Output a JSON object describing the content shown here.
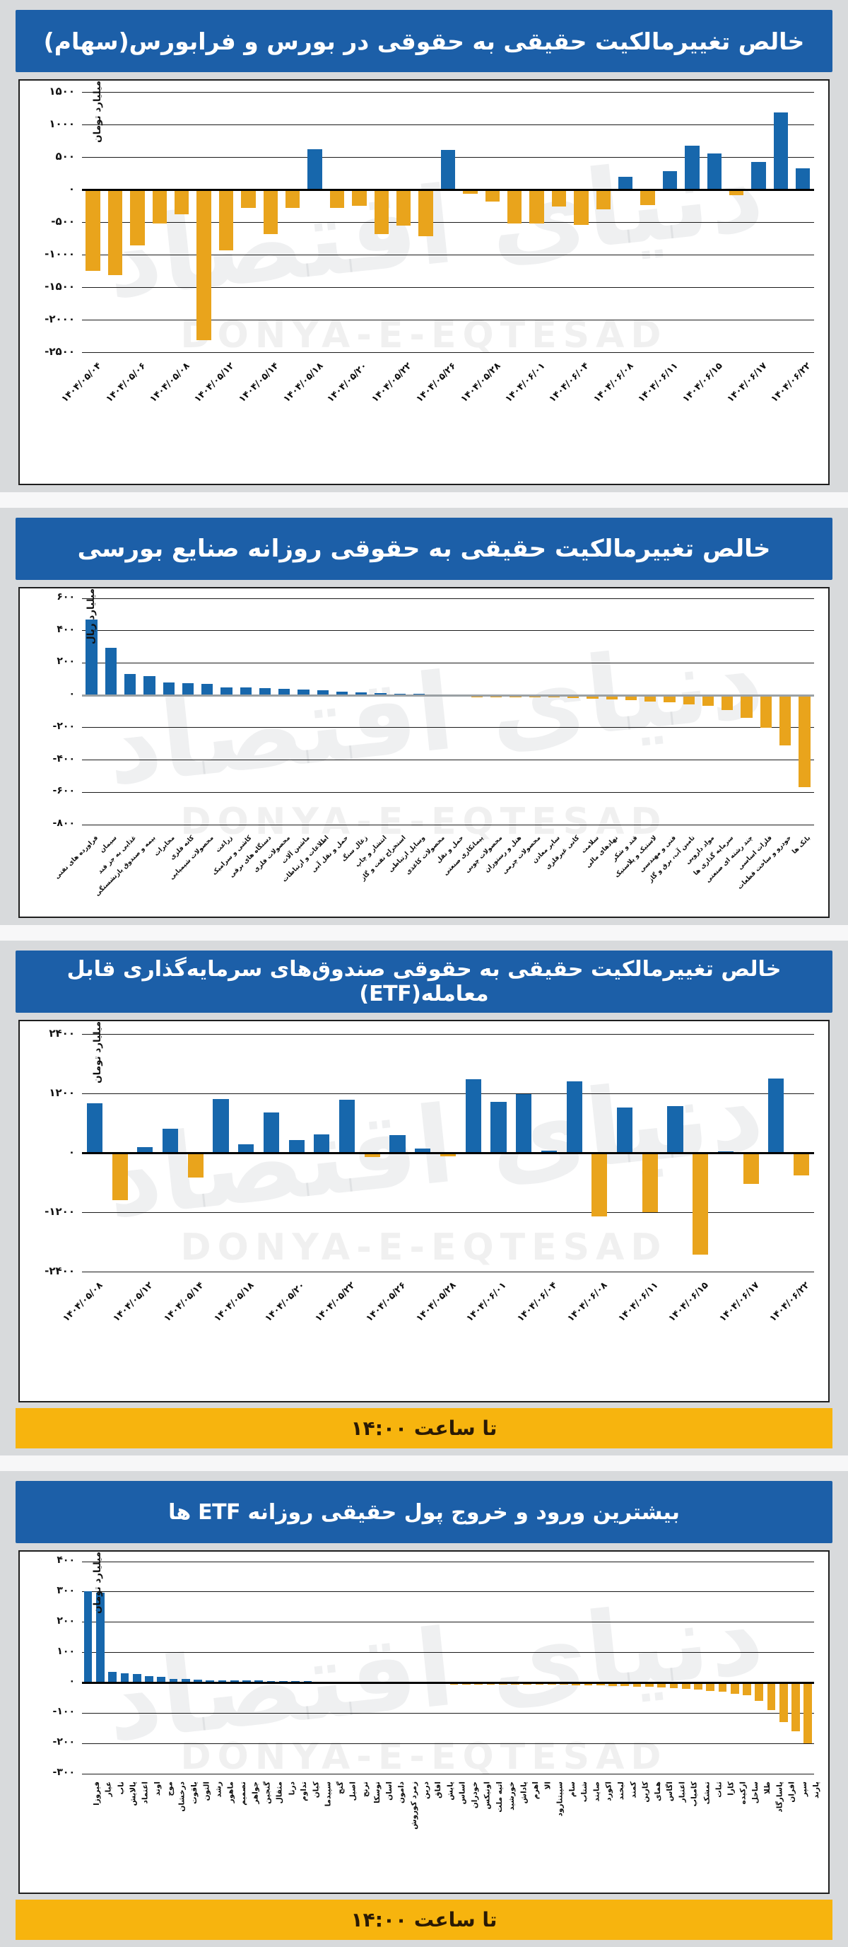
{
  "watermark": {
    "en": "DONYA-E-EQTESAD",
    "fa": "دنیای اقتصاد"
  },
  "colors": {
    "positive_bar": "#1767AC",
    "negative_bar": "#E9A41C",
    "header_bg": "#1C5FA8",
    "header_text": "#FFFFFF",
    "footer_bg": "#F7B40E",
    "footer_text": "#2A1A05",
    "panel_bg": "#D8DADC",
    "card_bg": "#FFFFFF"
  },
  "footer_note": "تا ساعت ۱۴:۰۰",
  "chart_data": [
    {
      "type": "bar",
      "title": "خالص تغییرمالکیت حقیقی به حقوقی در بورس و فرابورس(سهام)",
      "ylabel": "میلیارد تومان",
      "ylim": [
        -2500,
        1500
      ],
      "grid": true,
      "legend_position": "none",
      "ticks": [
        {
          "value": 1500,
          "label": "۱۵۰۰"
        },
        {
          "value": 1000,
          "label": "۱۰۰۰"
        },
        {
          "value": 500,
          "label": "۵۰۰"
        },
        {
          "value": 0,
          "label": "۰"
        },
        {
          "value": -500,
          "label": "-۵۰۰"
        },
        {
          "value": -1000,
          "label": "-۱۰۰۰"
        },
        {
          "value": -1500,
          "label": "-۱۵۰۰"
        },
        {
          "value": -2000,
          "label": "-۲۰۰۰"
        },
        {
          "value": -2500,
          "label": "-۲۵۰۰"
        }
      ],
      "categories": [
        "۱۴۰۴/۰۵/۰۴",
        "۱۴۰۴/۰۵/۰۶",
        "۱۴۰۴/۰۵/۰۸",
        "۱۴۰۴/۰۵/۱۲",
        "۱۴۰۴/۰۵/۱۴",
        "۱۴۰۴/۰۵/۱۸",
        "۱۴۰۴/۰۵/۲۰",
        "۱۴۰۴/۰۵/۲۲",
        "۱۴۰۴/۰۵/۲۶",
        "۱۴۰۴/۰۵/۲۸",
        "۱۴۰۴/۰۶/۰۱",
        "۱۴۰۴/۰۶/۰۴",
        "۱۴۰۴/۰۶/۰۸",
        "۱۴۰۴/۰۶/۱۱",
        "۱۴۰۴/۰۶/۱۵",
        "۱۴۰۴/۰۶/۱۷",
        "۱۴۰۴/۰۶/۲۲"
      ],
      "label_every": 2,
      "label_style": "diag-lg",
      "bar_frac": 0.65,
      "values": [
        -1250,
        -1320,
        -860,
        -520,
        -380,
        -2320,
        -930,
        -280,
        -680,
        -280,
        620,
        -280,
        -250,
        -680,
        -550,
        -720,
        610,
        -70,
        -180,
        -520,
        -520,
        -260,
        -540,
        -300,
        200,
        -240,
        280,
        670,
        550,
        -90,
        420,
        1180,
        330
      ]
    },
    {
      "type": "bar",
      "title": "خالص تغییرمالکیت حقیقی به حقوقی روزانه صنایع بورسی",
      "ylabel": "میلیارد ریال",
      "ylim": [
        -800,
        600
      ],
      "grid": true,
      "legend_position": "none",
      "ticks": [
        {
          "value": 600,
          "label": "۶۰۰"
        },
        {
          "value": 400,
          "label": "۴۰۰"
        },
        {
          "value": 200,
          "label": "۲۰۰"
        },
        {
          "value": 0,
          "label": "۰"
        },
        {
          "value": -200,
          "label": "-۲۰۰"
        },
        {
          "value": -400,
          "label": "-۴۰۰"
        },
        {
          "value": -600,
          "label": "-۶۰۰"
        },
        {
          "value": -800,
          "label": "-۸۰۰"
        }
      ],
      "categories": [
        "فراورده های نفتی",
        "سیمان",
        "غذایی به جز قند",
        "بیمه و صندوق بازنشستگی",
        "مخابرات",
        "کانه فلزی",
        "محصولات شیمیایی",
        "زراعت",
        "کاشی و سرامیک",
        "دستگاه های برقی",
        "محصولات فلزی",
        "ماشین آلات",
        "اطلاعات و ارتباطات",
        "حمل و نقل آبی",
        "زغال سنگ",
        "انتشار و چاپ",
        "استخراج نفت و گاز",
        "وسایل ارتباطی",
        "محصولات کاغذی",
        "حمل و نقل",
        "پیمانکاری صنعتی",
        "محصولات چوبی",
        "هتل و رستوران",
        "محصولات چرمی",
        "سایر معادن",
        "کانی غیرفلزی",
        "سلامت",
        "نهادهای مالی",
        "قند و شکر",
        "لاستیک و پلاستیک",
        "فنی و مهندسی",
        "تامین آب، برق و گاز",
        "مواد دارویی",
        "سرمایه گذاری ها",
        "چند رشته ای صنعتی",
        "فلزات اساسی",
        "خودرو و ساخت قطعات",
        "بانک ها"
      ],
      "label_every": 1,
      "label_style": "diag-sm",
      "bar_frac": 0.6,
      "values": [
        470,
        295,
        130,
        120,
        78,
        73,
        70,
        48,
        47,
        46,
        38,
        36,
        30,
        22,
        18,
        14,
        10,
        8,
        5,
        3,
        -3,
        -5,
        -8,
        -10,
        -13,
        -16,
        -20,
        -25,
        -30,
        -38,
        -45,
        -55,
        -65,
        -90,
        -140,
        -200,
        -310,
        -570
      ]
    },
    {
      "type": "bar",
      "title": "خالص تغییرمالکیت حقیقی به حقوقی صندوق‌های سرمایه‌گذاری قابل معامله(ETF)",
      "ylabel": "میلیارد تومان",
      "ylim": [
        -2400,
        2400
      ],
      "grid": true,
      "legend_position": "none",
      "has_footer": true,
      "ticks": [
        {
          "value": 2400,
          "label": "۲۴۰۰"
        },
        {
          "value": 1200,
          "label": "۱۲۰۰"
        },
        {
          "value": 0,
          "label": "۰"
        },
        {
          "value": -1200,
          "label": "-۱۲۰۰"
        },
        {
          "value": -2400,
          "label": "-۲۴۰۰"
        }
      ],
      "categories": [
        "۱۴۰۴/۰۵/۰۸",
        "۱۴۰۴/۰۵/۱۲",
        "۱۴۰۴/۰۵/۱۴",
        "۱۴۰۴/۰۵/۱۸",
        "۱۴۰۴/۰۵/۲۰",
        "۱۴۰۴/۰۵/۲۲",
        "۱۴۰۴/۰۵/۲۶",
        "۱۴۰۴/۰۵/۲۸",
        "۱۴۰۴/۰۶/۰۱",
        "۱۴۰۴/۰۶/۰۴",
        "۱۴۰۴/۰۶/۰۸",
        "۱۴۰۴/۰۶/۱۱",
        "۱۴۰۴/۰۶/۱۵",
        "۱۴۰۴/۰۶/۱۷",
        "۱۴۰۴/۰۶/۲۲"
      ],
      "label_every": 2,
      "label_style": "diag-lg",
      "bar_frac": 0.62,
      "values": [
        1000,
        -950,
        115,
        485,
        -500,
        1085,
        165,
        810,
        260,
        365,
        1075,
        -85,
        360,
        90,
        -75,
        1480,
        1035,
        1190,
        40,
        1450,
        -1280,
        915,
        -1200,
        950,
        -2050,
        25,
        -625,
        1500,
        -450
      ]
    },
    {
      "type": "bar",
      "title": "بیشترین ورود و خروج پول حقیقی روزانه ETF ها",
      "ylabel": "میلیارد تومان",
      "ylim": [
        -300,
        400
      ],
      "grid": true,
      "legend_position": "none",
      "has_footer": true,
      "ticks": [
        {
          "value": 400,
          "label": "۴۰۰"
        },
        {
          "value": 300,
          "label": "۳۰۰"
        },
        {
          "value": 200,
          "label": "۲۰۰"
        },
        {
          "value": 100,
          "label": "۱۰۰"
        },
        {
          "value": 0,
          "label": "۰"
        },
        {
          "value": -100,
          "label": "-۱۰۰"
        },
        {
          "value": -200,
          "label": "-۲۰۰"
        },
        {
          "value": -300,
          "label": "-۳۰۰"
        }
      ],
      "categories": [
        "فیروزا",
        "عیار",
        "ناب",
        "پالایش",
        "اعتماد",
        "اوند",
        "موج",
        "درخشان",
        "یاقوت",
        "التون",
        "رشد",
        "ماهور",
        "تصمیم",
        "جواهر",
        "گنجین",
        "مثقال",
        "درنا",
        "تداوم",
        "کیان",
        "سپیدما",
        "گنج",
        "اصیل",
        "ترنج",
        "توسکا",
        "اسان",
        "دامون",
        "زمرد کوروش",
        "درین",
        "افاق",
        "پایش",
        "اساس",
        "خودران",
        "اونیکس",
        "اتیه ملت",
        "خورشید",
        "پاداش",
        "اهرم",
        "الا",
        "سپیتنارود",
        "سام",
        "شتاب",
        "صایند",
        "اکورد",
        "لبخند",
        "کمند",
        "کارین",
        "همای",
        "اگاس",
        "اعتبار",
        "کامیاب",
        "تمشک",
        "ثبات",
        "کارا",
        "ارکیده",
        "ساحل",
        "طلا",
        "پاسارگاد",
        "افران",
        "سپر",
        "پارند"
      ],
      "label_every": 1,
      "label_style": "vert-sm",
      "bar_frac": 0.68,
      "values": [
        303,
        297,
        37,
        31,
        29,
        21,
        19,
        13,
        12,
        10,
        9,
        8,
        8,
        7,
        7,
        6,
        6,
        5,
        5,
        4,
        4,
        3,
        3,
        3,
        2,
        2,
        2,
        2,
        1,
        1,
        -2,
        -3,
        -4,
        -4,
        -5,
        -5,
        -6,
        -6,
        -7,
        -7,
        -8,
        -8,
        -9,
        -10,
        -11,
        -12,
        -13,
        -15,
        -17,
        -19,
        -22,
        -26,
        -30,
        -36,
        -42,
        -60,
        -90,
        -130,
        -160,
        -200
      ]
    }
  ]
}
